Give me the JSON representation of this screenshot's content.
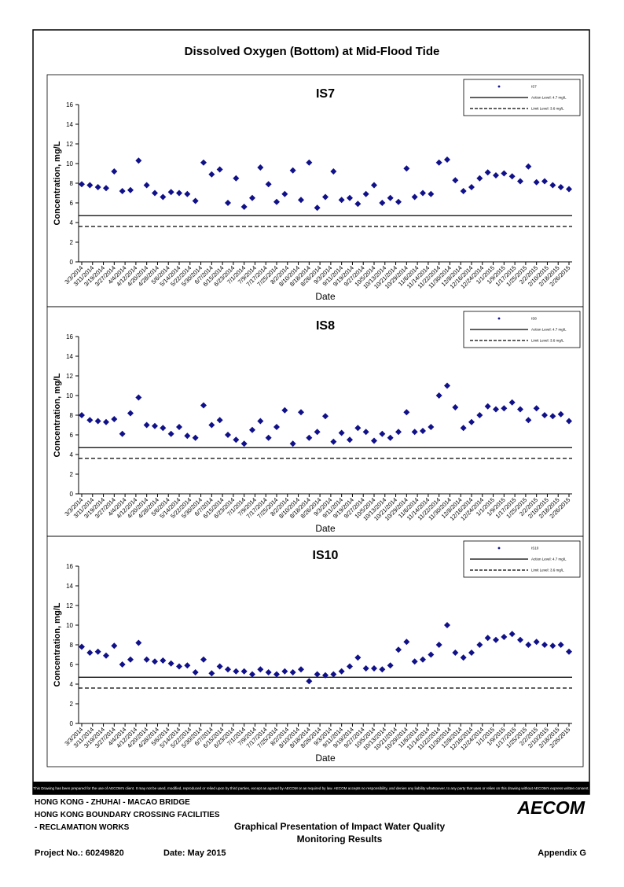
{
  "title": "Dissolved Oxygen (Bottom) at Mid-Flood Tide",
  "chart_data": [
    {
      "type": "scatter",
      "title": "IS7",
      "x_label": "Date",
      "y_label": "Concentration, mg/L",
      "ylim": [
        0,
        16
      ],
      "yticks": [
        0,
        2,
        4,
        6,
        8,
        10,
        12,
        14,
        16
      ],
      "xlim": [
        "3/3/2014",
        "2/26/2015"
      ],
      "xticks": [
        "3/3/2014",
        "3/11/2014",
        "3/19/2014",
        "3/27/2014",
        "4/4/2014",
        "4/12/2014",
        "4/20/2014",
        "4/28/2014",
        "5/6/2014",
        "5/14/2014",
        "5/22/2014",
        "5/30/2014",
        "6/7/2014",
        "6/15/2014",
        "6/23/2014",
        "7/1/2014",
        "7/9/2014",
        "7/17/2014",
        "7/25/2014",
        "8/2/2014",
        "8/10/2014",
        "8/18/2014",
        "8/26/2014",
        "9/3/2014",
        "9/11/2014",
        "9/19/2014",
        "9/27/2014",
        "10/5/2014",
        "10/13/2014",
        "10/21/2014",
        "10/29/2014",
        "11/6/2014",
        "11/14/2014",
        "11/22/2014",
        "11/30/2014",
        "12/8/2014",
        "12/16/2014",
        "12/24/2014",
        "1/1/2015",
        "1/9/2015",
        "1/17/2015",
        "1/25/2015",
        "2/2/2015",
        "2/10/2015",
        "2/18/2015",
        "2/26/2015"
      ],
      "series": [
        {
          "name": "IS7",
          "color": "#10108a",
          "x": [
            "3/3/2014",
            "3/9/2014",
            "3/15/2014",
            "3/21/2014",
            "3/27/2014",
            "4/2/2014",
            "4/8/2014",
            "4/14/2014",
            "4/20/2014",
            "4/26/2014",
            "5/2/2014",
            "5/8/2014",
            "5/14/2014",
            "5/20/2014",
            "5/26/2014",
            "6/1/2014",
            "6/7/2014",
            "6/13/2014",
            "6/19/2014",
            "6/25/2014",
            "7/1/2014",
            "7/7/2014",
            "7/13/2014",
            "7/19/2014",
            "7/25/2014",
            "7/31/2014",
            "8/6/2014",
            "8/12/2014",
            "8/18/2014",
            "8/24/2014",
            "8/30/2014",
            "9/5/2014",
            "9/11/2014",
            "9/17/2014",
            "9/23/2014",
            "9/29/2014",
            "10/5/2014",
            "10/11/2014",
            "10/17/2014",
            "10/23/2014",
            "10/29/2014",
            "11/4/2014",
            "11/10/2014",
            "11/16/2014",
            "11/22/2014",
            "11/28/2014",
            "12/4/2014",
            "12/10/2014",
            "12/16/2014",
            "12/22/2014",
            "12/28/2014",
            "1/3/2015",
            "1/9/2015",
            "1/15/2015",
            "1/21/2015",
            "1/27/2015",
            "2/2/2015",
            "2/8/2015",
            "2/14/2015",
            "2/20/2015",
            "2/26/2015"
          ],
          "values": [
            7.9,
            7.8,
            7.6,
            7.5,
            9.2,
            7.2,
            7.3,
            10.3,
            7.8,
            7.0,
            6.6,
            7.1,
            7.0,
            6.9,
            6.2,
            10.1,
            8.9,
            9.4,
            6.0,
            8.5,
            5.6,
            6.5,
            9.6,
            7.9,
            6.1,
            6.9,
            9.3,
            6.3,
            10.1,
            5.5,
            6.6,
            9.2,
            6.3,
            6.5,
            5.9,
            6.9,
            7.8,
            6.0,
            6.5,
            6.1,
            9.5,
            6.6,
            7.0,
            6.9,
            10.1,
            10.4,
            8.3,
            7.2,
            7.6,
            8.5,
            9.1,
            8.8,
            9.0,
            8.7,
            8.2,
            9.7,
            8.1,
            8.2,
            7.8,
            7.6,
            7.4
          ]
        }
      ],
      "reference_lines": [
        {
          "name": "Action Level: 4.7 mg/L",
          "value": 4.7,
          "style": "solid"
        },
        {
          "name": "Limit Level: 3.6 mg/L",
          "value": 3.6,
          "style": "dashed"
        }
      ]
    },
    {
      "type": "scatter",
      "title": "IS8",
      "x_label": "Date",
      "y_label": "Concentration, mg/L",
      "ylim": [
        0,
        16
      ],
      "yticks": [
        0,
        2,
        4,
        6,
        8,
        10,
        12,
        14,
        16
      ],
      "xlim": [
        "3/3/2014",
        "2/26/2015"
      ],
      "xticks": [
        "3/3/2014",
        "3/11/2014",
        "3/19/2014",
        "3/27/2014",
        "4/4/2014",
        "4/12/2014",
        "4/20/2014",
        "4/28/2014",
        "5/6/2014",
        "5/14/2014",
        "5/22/2014",
        "5/30/2014",
        "6/7/2014",
        "6/15/2014",
        "6/23/2014",
        "7/1/2014",
        "7/9/2014",
        "7/17/2014",
        "7/25/2014",
        "8/2/2014",
        "8/10/2014",
        "8/18/2014",
        "8/26/2014",
        "9/3/2014",
        "9/11/2014",
        "9/19/2014",
        "9/27/2014",
        "10/5/2014",
        "10/13/2014",
        "10/21/2014",
        "10/29/2014",
        "11/6/2014",
        "11/14/2014",
        "11/22/2014",
        "11/30/2014",
        "12/8/2014",
        "12/16/2014",
        "12/24/2014",
        "1/1/2015",
        "1/9/2015",
        "1/17/2015",
        "1/25/2015",
        "2/2/2015",
        "2/10/2015",
        "2/18/2015",
        "2/26/2015"
      ],
      "series": [
        {
          "name": "IS8",
          "color": "#10108a",
          "x": [
            "3/3/2014",
            "3/9/2014",
            "3/15/2014",
            "3/21/2014",
            "3/27/2014",
            "4/2/2014",
            "4/8/2014",
            "4/14/2014",
            "4/20/2014",
            "4/26/2014",
            "5/2/2014",
            "5/8/2014",
            "5/14/2014",
            "5/20/2014",
            "5/26/2014",
            "6/1/2014",
            "6/7/2014",
            "6/13/2014",
            "6/19/2014",
            "6/25/2014",
            "7/1/2014",
            "7/7/2014",
            "7/13/2014",
            "7/19/2014",
            "7/25/2014",
            "7/31/2014",
            "8/6/2014",
            "8/12/2014",
            "8/18/2014",
            "8/24/2014",
            "8/30/2014",
            "9/5/2014",
            "9/11/2014",
            "9/17/2014",
            "9/23/2014",
            "9/29/2014",
            "10/5/2014",
            "10/11/2014",
            "10/17/2014",
            "10/23/2014",
            "10/29/2014",
            "11/4/2014",
            "11/10/2014",
            "11/16/2014",
            "11/22/2014",
            "11/28/2014",
            "12/4/2014",
            "12/10/2014",
            "12/16/2014",
            "12/22/2014",
            "12/28/2014",
            "1/3/2015",
            "1/9/2015",
            "1/15/2015",
            "1/21/2015",
            "1/27/2015",
            "2/2/2015",
            "2/8/2015",
            "2/14/2015",
            "2/20/2015",
            "2/26/2015"
          ],
          "values": [
            8.0,
            7.5,
            7.4,
            7.3,
            7.6,
            6.1,
            8.2,
            9.8,
            7.0,
            6.9,
            6.7,
            6.1,
            6.8,
            5.9,
            5.7,
            9.0,
            7.0,
            7.5,
            6.0,
            5.5,
            5.1,
            6.5,
            7.4,
            5.7,
            6.8,
            8.5,
            5.1,
            8.3,
            5.7,
            6.3,
            7.9,
            5.3,
            6.2,
            5.5,
            6.7,
            6.3,
            5.4,
            6.1,
            5.7,
            6.3,
            8.3,
            6.3,
            6.4,
            6.8,
            10.0,
            11.0,
            8.8,
            6.7,
            7.3,
            8.0,
            8.9,
            8.6,
            8.7,
            9.3,
            8.6,
            7.5,
            8.7,
            8.0,
            7.9,
            8.1,
            7.4
          ]
        }
      ],
      "reference_lines": [
        {
          "name": "Action Level: 4.7 mg/L",
          "value": 4.7,
          "style": "solid"
        },
        {
          "name": "Limit Level: 3.6 mg/L",
          "value": 3.6,
          "style": "dashed"
        }
      ]
    },
    {
      "type": "scatter",
      "title": "IS10",
      "x_label": "Date",
      "y_label": "Concentration, mg/L",
      "ylim": [
        0,
        16
      ],
      "yticks": [
        0,
        2,
        4,
        6,
        8,
        10,
        12,
        14,
        16
      ],
      "xlim": [
        "3/3/2014",
        "2/26/2015"
      ],
      "xticks": [
        "3/3/2014",
        "3/11/2014",
        "3/19/2014",
        "3/27/2014",
        "4/4/2014",
        "4/12/2014",
        "4/20/2014",
        "4/28/2014",
        "5/6/2014",
        "5/14/2014",
        "5/22/2014",
        "5/30/2014",
        "6/7/2014",
        "6/15/2014",
        "6/23/2014",
        "7/1/2014",
        "7/9/2014",
        "7/17/2014",
        "7/25/2014",
        "8/2/2014",
        "8/10/2014",
        "8/18/2014",
        "8/26/2014",
        "9/3/2014",
        "9/11/2014",
        "9/19/2014",
        "9/27/2014",
        "10/5/2014",
        "10/13/2014",
        "10/21/2014",
        "10/29/2014",
        "11/6/2014",
        "11/14/2014",
        "11/22/2014",
        "11/30/2014",
        "12/8/2014",
        "12/16/2014",
        "12/24/2014",
        "1/1/2015",
        "1/9/2015",
        "1/17/2015",
        "1/25/2015",
        "2/2/2015",
        "2/10/2015",
        "2/18/2015",
        "2/26/2015"
      ],
      "series": [
        {
          "name": "IS10",
          "color": "#10108a",
          "x": [
            "3/3/2014",
            "3/9/2014",
            "3/15/2014",
            "3/21/2014",
            "3/27/2014",
            "4/2/2014",
            "4/8/2014",
            "4/14/2014",
            "4/20/2014",
            "4/26/2014",
            "5/2/2014",
            "5/8/2014",
            "5/14/2014",
            "5/20/2014",
            "5/26/2014",
            "6/1/2014",
            "6/7/2014",
            "6/13/2014",
            "6/19/2014",
            "6/25/2014",
            "7/1/2014",
            "7/7/2014",
            "7/13/2014",
            "7/19/2014",
            "7/25/2014",
            "7/31/2014",
            "8/6/2014",
            "8/12/2014",
            "8/18/2014",
            "8/24/2014",
            "8/30/2014",
            "9/5/2014",
            "9/11/2014",
            "9/17/2014",
            "9/23/2014",
            "9/29/2014",
            "10/5/2014",
            "10/11/2014",
            "10/17/2014",
            "10/23/2014",
            "10/29/2014",
            "11/4/2014",
            "11/10/2014",
            "11/16/2014",
            "11/22/2014",
            "11/28/2014",
            "12/4/2014",
            "12/10/2014",
            "12/16/2014",
            "12/22/2014",
            "12/28/2014",
            "1/3/2015",
            "1/9/2015",
            "1/15/2015",
            "1/21/2015",
            "1/27/2015",
            "2/2/2015",
            "2/8/2015",
            "2/14/2015",
            "2/20/2015",
            "2/26/2015"
          ],
          "values": [
            7.8,
            7.2,
            7.3,
            6.9,
            7.9,
            6.0,
            6.5,
            8.2,
            6.5,
            6.3,
            6.4,
            6.1,
            5.8,
            5.9,
            5.2,
            6.5,
            5.1,
            5.8,
            5.5,
            5.3,
            5.3,
            5.0,
            5.5,
            5.2,
            5.0,
            5.3,
            5.2,
            5.5,
            4.3,
            5.0,
            4.9,
            5.0,
            5.3,
            5.8,
            6.7,
            5.6,
            5.6,
            5.5,
            5.9,
            7.5,
            8.3,
            6.3,
            6.5,
            7.0,
            8.0,
            10.0,
            7.2,
            6.7,
            7.2,
            8.0,
            8.7,
            8.5,
            8.8,
            9.1,
            8.5,
            8.0,
            8.3,
            8.0,
            7.9,
            8.0,
            7.3
          ]
        }
      ],
      "reference_lines": [
        {
          "name": "Action Level: 4.7 mg/L",
          "value": 4.7,
          "style": "solid"
        },
        {
          "name": "Limit Level: 3.6 mg/L",
          "value": 3.6,
          "style": "dashed"
        }
      ]
    }
  ],
  "disclaimer": "This Drawing has been prepared for the use of AECOM's client. It may not be used, modified, reproduced or relied upon by third parties, except as agreed by AECOM or as required by law. AECOM accepts no responsibility, and denies any liability whatsoever, to any party that uses or relies on this drawing without AECOM's express written consent.",
  "footer": {
    "project_lines": [
      "HONG KONG - ZHUHAI - MACAO BRIDGE",
      "HONG KONG BOUNDARY CROSSING FACILITIES",
      "- RECLAMATION WORKS"
    ],
    "logo": "AECOM",
    "drawing_title": [
      "Graphical Presentation of Impact Water Quality",
      "Monitoring Results"
    ],
    "project_no": "Project No.: 60249820",
    "date": "Date: May 2015",
    "appendix": "Appendix G"
  }
}
